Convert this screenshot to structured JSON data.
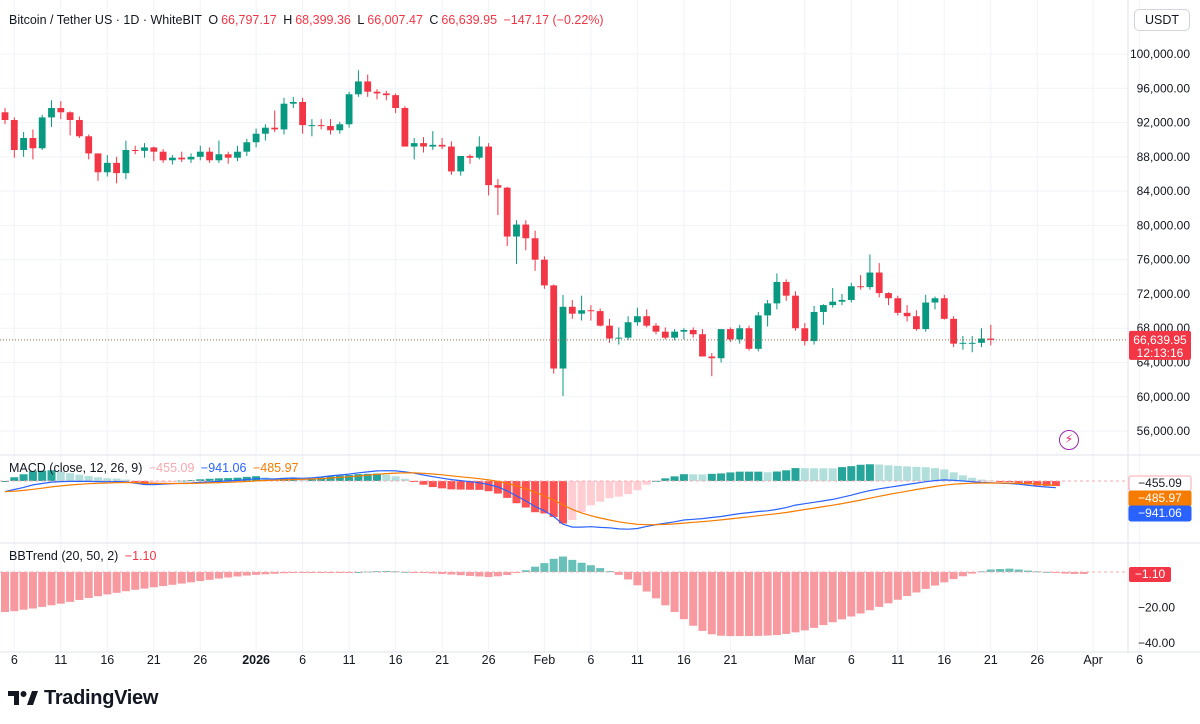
{
  "header": {
    "symbol": "Bitcoin / Tether US · 1D · WhiteBIT",
    "open_label": "O",
    "open": "66,797.17",
    "high_label": "H",
    "high": "68,399.36",
    "low_label": "L",
    "low": "66,007.47",
    "close_label": "C",
    "close": "66,639.95",
    "change": "−147.17 (−0.22%)",
    "currency": "USDT"
  },
  "macd": {
    "label": "MACD (close, 12, 26, 9)",
    "hist": "−455.09",
    "macd": "−941.06",
    "signal": "−485.97"
  },
  "bbtrend": {
    "label": "BBTrend (20, 50, 2)",
    "value": "−1.10"
  },
  "colors": {
    "up": "#089981",
    "down": "#f23645",
    "macd_line": "#2962ff",
    "signal_line": "#f57c00",
    "hist_up_strong": "#26a69a",
    "hist_up_weak": "#b2dfdb",
    "hist_down_strong": "#ff5252",
    "hist_down_weak": "#ffcdd2"
  },
  "price_tag": {
    "price": "66,639.95",
    "countdown": "12:13:16"
  },
  "macd_tags": [
    "−455.09",
    "−485.97",
    "−941.06"
  ],
  "bbt_tag": "−1.10",
  "brand": {
    "icon": "tradingview-logo-icon",
    "name": "TradingView"
  },
  "chart_data": {
    "type": "candlestick",
    "title": "Bitcoin / Tether US · 1D · WhiteBIT",
    "price_axis": {
      "ticks": [
        56000,
        60000,
        64000,
        68000,
        72000,
        76000,
        80000,
        84000,
        88000,
        92000,
        96000,
        100000
      ],
      "tick_labels": [
        "56,000.00",
        "60,000.00",
        "64,000.00",
        "68,000.00",
        "72,000.00",
        "76,000.00",
        "80,000.00",
        "84,000.00",
        "88,000.00",
        "92,000.00",
        "96,000.00",
        "100,000.00"
      ]
    },
    "date_axis": {
      "ticks": [
        {
          "label": "6",
          "index": 1
        },
        {
          "label": "11",
          "index": 6
        },
        {
          "label": "16",
          "index": 11
        },
        {
          "label": "21",
          "index": 16
        },
        {
          "label": "26",
          "index": 21
        },
        {
          "label": "2026",
          "index": 27,
          "bold": true
        },
        {
          "label": "6",
          "index": 32
        },
        {
          "label": "11",
          "index": 37
        },
        {
          "label": "16",
          "index": 42
        },
        {
          "label": "21",
          "index": 47
        },
        {
          "label": "26",
          "index": 52
        },
        {
          "label": "Feb",
          "index": 58
        },
        {
          "label": "6",
          "index": 63
        },
        {
          "label": "11",
          "index": 68
        },
        {
          "label": "16",
          "index": 73
        },
        {
          "label": "21",
          "index": 78
        },
        {
          "label": "Mar",
          "index": 86
        },
        {
          "label": "6",
          "index": 91
        },
        {
          "label": "11",
          "index": 96
        },
        {
          "label": "16",
          "index": 101
        },
        {
          "label": "21",
          "index": 106
        },
        {
          "label": "26",
          "index": 111
        },
        {
          "label": "Apr",
          "index": 117
        },
        {
          "label": "6",
          "index": 122
        }
      ]
    },
    "candles": [
      [
        93200,
        93700,
        91800,
        92300
      ],
      [
        92300,
        92600,
        87900,
        88800
      ],
      [
        88800,
        90900,
        88000,
        90200
      ],
      [
        90200,
        91200,
        87700,
        89000
      ],
      [
        89000,
        92900,
        88800,
        92600
      ],
      [
        92600,
        94600,
        91500,
        93700
      ],
      [
        93700,
        94500,
        92400,
        93200
      ],
      [
        93200,
        93300,
        90500,
        92300
      ],
      [
        92300,
        92700,
        90200,
        90400
      ],
      [
        90400,
        90600,
        87700,
        88400
      ],
      [
        88400,
        88400,
        85200,
        86200
      ],
      [
        86200,
        88200,
        85700,
        87300
      ],
      [
        87300,
        88000,
        84900,
        86100
      ],
      [
        86100,
        89900,
        85400,
        88800
      ],
      [
        88800,
        89300,
        88300,
        88700
      ],
      [
        88700,
        89600,
        87900,
        89100
      ],
      [
        89100,
        89200,
        87500,
        88600
      ],
      [
        88600,
        88900,
        87300,
        87600
      ],
      [
        87600,
        88200,
        87100,
        87900
      ],
      [
        87900,
        88600,
        87400,
        87700
      ],
      [
        87700,
        88400,
        87300,
        88000
      ],
      [
        88000,
        89300,
        87600,
        88600
      ],
      [
        88600,
        89100,
        87300,
        87600
      ],
      [
        87600,
        89900,
        87300,
        88300
      ],
      [
        88300,
        88600,
        87200,
        87900
      ],
      [
        87900,
        89300,
        87500,
        88600
      ],
      [
        88600,
        90100,
        88100,
        89700
      ],
      [
        89700,
        91300,
        89100,
        90700
      ],
      [
        90700,
        91800,
        89900,
        91400
      ],
      [
        91400,
        93400,
        90900,
        91200
      ],
      [
        91200,
        94900,
        90600,
        94200
      ],
      [
        94200,
        95000,
        93700,
        94400
      ],
      [
        94400,
        94900,
        90700,
        91700
      ],
      [
        91700,
        92400,
        90400,
        91700
      ],
      [
        91700,
        92400,
        91200,
        91600
      ],
      [
        91600,
        92400,
        90600,
        91100
      ],
      [
        91100,
        92100,
        90700,
        91800
      ],
      [
        91800,
        95600,
        91400,
        95300
      ],
      [
        95300,
        98100,
        95000,
        96800
      ],
      [
        96800,
        97600,
        95000,
        95600
      ],
      [
        95600,
        95900,
        94700,
        95400
      ],
      [
        95400,
        95700,
        94600,
        95200
      ],
      [
        95200,
        95400,
        93100,
        93700
      ],
      [
        93700,
        93900,
        89200,
        89200
      ],
      [
        89200,
        90200,
        87700,
        89600
      ],
      [
        89600,
        90300,
        88500,
        89200
      ],
      [
        89200,
        91000,
        88800,
        89400
      ],
      [
        89400,
        90200,
        88900,
        89200
      ],
      [
        89200,
        89800,
        85900,
        86300
      ],
      [
        86300,
        88100,
        85800,
        88100
      ],
      [
        88100,
        88300,
        87200,
        87900
      ],
      [
        87900,
        90400,
        87700,
        89200
      ],
      [
        89200,
        89600,
        83500,
        84700
      ],
      [
        84700,
        85400,
        81200,
        84400
      ],
      [
        84400,
        84500,
        77600,
        78700
      ],
      [
        78700,
        80600,
        75500,
        80100
      ],
      [
        80100,
        80600,
        77100,
        78500
      ],
      [
        78500,
        79400,
        74700,
        76000
      ],
      [
        76000,
        76400,
        72600,
        73000
      ],
      [
        73000,
        73100,
        62700,
        63300
      ],
      [
        63300,
        71900,
        60100,
        70500
      ],
      [
        70500,
        71300,
        69100,
        69700
      ],
      [
        69700,
        71800,
        68900,
        70100
      ],
      [
        70100,
        70700,
        68900,
        70000
      ],
      [
        70000,
        70300,
        68200,
        68300
      ],
      [
        68300,
        69100,
        66300,
        66800
      ],
      [
        66800,
        68100,
        66100,
        66900
      ],
      [
        66900,
        69400,
        66600,
        68700
      ],
      [
        68700,
        70400,
        68300,
        69400
      ],
      [
        69400,
        70200,
        68100,
        68300
      ],
      [
        68300,
        68600,
        67300,
        67600
      ],
      [
        67600,
        68100,
        66700,
        66900
      ],
      [
        66900,
        67900,
        66600,
        67600
      ],
      [
        67600,
        68000,
        66700,
        67800
      ],
      [
        67800,
        68100,
        66900,
        67300
      ],
      [
        67300,
        67900,
        64800,
        64700
      ],
      [
        64700,
        65100,
        62400,
        64500
      ],
      [
        64500,
        67800,
        64000,
        67900
      ],
      [
        67900,
        68100,
        66400,
        66700
      ],
      [
        66700,
        68400,
        66200,
        68000
      ],
      [
        68000,
        68300,
        65400,
        65600
      ],
      [
        65600,
        69900,
        65300,
        69500
      ],
      [
        69500,
        71300,
        68200,
        70900
      ],
      [
        70900,
        74400,
        70200,
        73400
      ],
      [
        73400,
        73700,
        71200,
        71800
      ],
      [
        71800,
        72300,
        67700,
        68000
      ],
      [
        68000,
        68600,
        66000,
        66500
      ],
      [
        66500,
        70600,
        66100,
        69900
      ],
      [
        69900,
        70800,
        68400,
        70700
      ],
      [
        70700,
        72700,
        70400,
        71100
      ],
      [
        71100,
        72000,
        70700,
        71300
      ],
      [
        71300,
        73300,
        71000,
        72900
      ],
      [
        72900,
        74200,
        72500,
        72800
      ],
      [
        72800,
        76600,
        72500,
        74500
      ],
      [
        74500,
        75600,
        71600,
        72100
      ],
      [
        72100,
        72200,
        70700,
        71500
      ],
      [
        71500,
        71800,
        69500,
        69800
      ],
      [
        69800,
        70700,
        68800,
        69400
      ],
      [
        69400,
        70100,
        67700,
        67900
      ],
      [
        67900,
        71900,
        67600,
        71000
      ],
      [
        71000,
        71700,
        70200,
        71500
      ],
      [
        71500,
        71900,
        69000,
        69100
      ],
      [
        69100,
        69400,
        65800,
        66200
      ],
      [
        66200,
        67100,
        65500,
        66300
      ],
      [
        66300,
        67100,
        65200,
        66300
      ],
      [
        66300,
        68000,
        65800,
        66800
      ],
      [
        66797,
        68399,
        66007,
        66640
      ]
    ],
    "last_price": 66639.95,
    "macd": {
      "macd_line": [
        -1500,
        -1200,
        -900,
        -550,
        -350,
        -150,
        -80,
        -60,
        -50,
        -60,
        -80,
        -100,
        -80,
        -120,
        -300,
        -500,
        -520,
        -440,
        -380,
        -320,
        -280,
        -200,
        -130,
        -60,
        0,
        80,
        200,
        320,
        300,
        280,
        360,
        420,
        380,
        450,
        560,
        720,
        850,
        980,
        1150,
        1280,
        1420,
        1450,
        1420,
        1300,
        1100,
        850,
        600,
        400,
        200,
        50,
        -100,
        -250,
        -500,
        -850,
        -1400,
        -2100,
        -2800,
        -3600,
        -4200,
        -5000,
        -6100,
        -6500,
        -6500,
        -6450,
        -6550,
        -6600,
        -6750,
        -6800,
        -6700,
        -6400,
        -6150,
        -5950,
        -5750,
        -5500,
        -5400,
        -5300,
        -5150,
        -5000,
        -4800,
        -4600,
        -4450,
        -4300,
        -4200,
        -4000,
        -3750,
        -3400,
        -3200,
        -3000,
        -2800,
        -2600,
        -2300,
        -2000,
        -1650,
        -1350,
        -1100,
        -900,
        -700,
        -500,
        -300,
        -100,
        50,
        150,
        100,
        0,
        -100,
        -200,
        -250,
        -300,
        -350,
        -450,
        -600,
        -750,
        -850,
        -941
      ]
    },
    "bbtrend": {
      "histogram": [
        -22.5,
        -22.0,
        -21.2,
        -20.5,
        -19.6,
        -18.7,
        -17.8,
        -16.8,
        -15.7,
        -14.6,
        -13.6,
        -12.6,
        -11.7,
        -10.8,
        -10.0,
        -9.3,
        -8.6,
        -7.9,
        -7.2,
        -6.5,
        -5.8,
        -5.1,
        -4.4,
        -3.7,
        -3.1,
        -2.5,
        -2.0,
        -1.6,
        -1.3,
        -1.0,
        -0.7,
        -0.5,
        -0.3,
        -0.3,
        -0.5,
        -0.6,
        -0.4,
        -0.2,
        0.0,
        0.3,
        0.5,
        0.6,
        0.4,
        0.1,
        -0.2,
        -0.5,
        -0.8,
        -1.1,
        -1.4,
        -1.8,
        -2.2,
        -2.5,
        -2.8,
        -2.4,
        -1.7,
        -0.6,
        1.0,
        3.0,
        5.0,
        7.4,
        8.7,
        6.8,
        5.2,
        3.8,
        2.2,
        0.5,
        -1.6,
        -4.2,
        -7.5,
        -11.0,
        -14.8,
        -18.7,
        -22.5,
        -26.5,
        -30.2,
        -33.1,
        -35.0,
        -35.8,
        -36.0,
        -36.0,
        -36.0,
        -35.9,
        -35.7,
        -35.4,
        -34.8,
        -33.9,
        -32.8,
        -31.4,
        -29.8,
        -28.2,
        -26.6,
        -25.0,
        -23.3,
        -21.5,
        -19.6,
        -17.6,
        -15.6,
        -13.5,
        -11.5,
        -9.5,
        -7.6,
        -5.8,
        -4.0,
        -2.4,
        -0.9,
        0.4,
        1.4,
        1.7,
        1.9,
        1.4,
        0.8,
        0.4,
        0.1,
        -0.2,
        -0.9,
        -1.1,
        -1.1
      ],
      "axis_ticks": [
        -20,
        -40
      ],
      "axis_labels": [
        "−20.00",
        "−40.00"
      ]
    }
  }
}
